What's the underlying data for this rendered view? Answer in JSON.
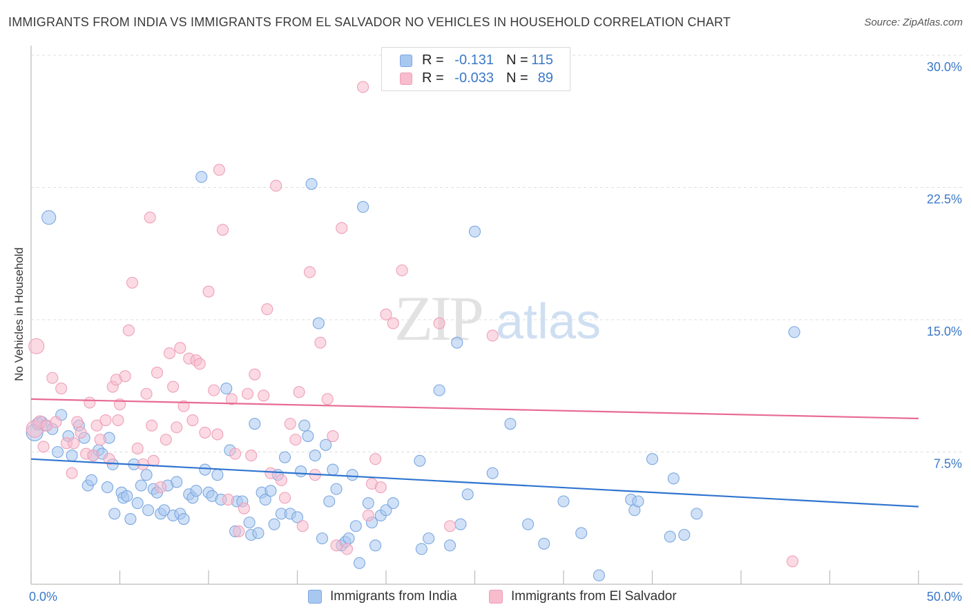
{
  "header": {
    "title": "IMMIGRANTS FROM INDIA VS IMMIGRANTS FROM EL SALVADOR NO VEHICLES IN HOUSEHOLD CORRELATION CHART",
    "source": "Source: ZipAtlas.com"
  },
  "watermark": {
    "zip": "ZIP",
    "atlas": "atlas"
  },
  "legend": {
    "r_label": "R =",
    "n_label": "N =",
    "india": {
      "r": "-0.131",
      "n": "115"
    },
    "elsalvador": {
      "r": "-0.033",
      "n": "89"
    }
  },
  "bottom_legend": {
    "india": "Immigrants from India",
    "elsalvador": "Immigrants from El Salvador"
  },
  "colors": {
    "india_fill": "#a9c8f0",
    "india_stroke": "#7aa7e0",
    "india_line": "#2f74d0",
    "elsalvador_fill": "#f7bccd",
    "elsalvador_stroke": "#eea0b8",
    "elsalvador_line": "#e86a92",
    "tick_label": "#3a78c8",
    "grid": "#dddddd"
  },
  "chart_data": {
    "type": "scatter",
    "title": "IMMIGRANTS FROM INDIA VS IMMIGRANTS FROM EL SALVADOR NO VEHICLES IN HOUSEHOLD CORRELATION CHART",
    "xlabel": "",
    "ylabel": "No Vehicles in Household",
    "xlim": [
      0,
      50
    ],
    "ylim": [
      0,
      30
    ],
    "x_tick_labels": [
      {
        "value": 0,
        "label": "0.0%"
      },
      {
        "value": 50,
        "label": "50.0%"
      }
    ],
    "y_ticks": [
      {
        "value": 7.5,
        "label": "7.5%"
      },
      {
        "value": 15,
        "label": "15.0%"
      },
      {
        "value": 22.5,
        "label": "22.5%"
      },
      {
        "value": 30,
        "label": "30.0%"
      }
    ],
    "x_minor_ticks": [
      0,
      5,
      10,
      15,
      20,
      25,
      30,
      35,
      40,
      45,
      50
    ],
    "grid": true,
    "legend_position": "top-center",
    "series": [
      {
        "name": "Immigrants from India",
        "trend": {
          "x0": 0,
          "y0": 7.1,
          "x1": 50,
          "y1": 4.4
        },
        "points": [
          [
            0.2,
            8.6,
            12
          ],
          [
            0.4,
            9.1,
            9
          ],
          [
            0.6,
            9.2,
            8
          ],
          [
            0.8,
            9.0,
            8
          ],
          [
            1.0,
            20.8,
            10
          ],
          [
            1.2,
            8.8,
            8
          ],
          [
            1.5,
            7.5,
            8
          ],
          [
            1.7,
            9.6,
            8
          ],
          [
            2.1,
            8.4,
            8
          ],
          [
            2.3,
            7.3,
            8
          ],
          [
            2.7,
            9.0,
            8
          ],
          [
            3.0,
            8.3,
            8
          ],
          [
            3.2,
            5.6,
            8
          ],
          [
            3.4,
            5.9,
            8
          ],
          [
            3.5,
            7.3,
            8
          ],
          [
            3.8,
            7.6,
            8
          ],
          [
            4.0,
            7.4,
            8
          ],
          [
            4.3,
            5.5,
            8
          ],
          [
            4.4,
            8.3,
            8
          ],
          [
            4.6,
            6.8,
            8
          ],
          [
            4.7,
            4.0,
            8
          ],
          [
            5.1,
            5.2,
            8
          ],
          [
            5.2,
            4.9,
            8
          ],
          [
            5.4,
            5.0,
            8
          ],
          [
            5.6,
            3.7,
            8
          ],
          [
            5.8,
            6.8,
            8
          ],
          [
            6.0,
            4.6,
            8
          ],
          [
            6.2,
            5.6,
            8
          ],
          [
            6.5,
            6.2,
            8
          ],
          [
            6.6,
            4.2,
            8
          ],
          [
            6.9,
            5.4,
            8
          ],
          [
            7.1,
            5.2,
            8
          ],
          [
            7.3,
            4.0,
            8
          ],
          [
            7.5,
            4.2,
            8
          ],
          [
            7.7,
            5.6,
            8
          ],
          [
            8.0,
            3.9,
            8
          ],
          [
            8.2,
            5.8,
            8
          ],
          [
            8.4,
            4.0,
            8
          ],
          [
            8.6,
            3.7,
            8
          ],
          [
            8.9,
            5.1,
            8
          ],
          [
            9.1,
            4.9,
            8
          ],
          [
            9.3,
            5.3,
            8
          ],
          [
            9.6,
            23.1,
            8
          ],
          [
            9.8,
            6.5,
            8
          ],
          [
            10.0,
            5.2,
            8
          ],
          [
            10.2,
            5.0,
            8
          ],
          [
            10.5,
            6.2,
            8
          ],
          [
            10.7,
            4.8,
            8
          ],
          [
            11.0,
            11.1,
            8
          ],
          [
            11.2,
            7.6,
            8
          ],
          [
            11.5,
            3.0,
            8
          ],
          [
            11.6,
            4.7,
            8
          ],
          [
            11.9,
            4.7,
            8
          ],
          [
            12.3,
            3.5,
            8
          ],
          [
            12.4,
            2.8,
            8
          ],
          [
            12.6,
            9.1,
            8
          ],
          [
            12.8,
            2.9,
            8
          ],
          [
            13.0,
            5.2,
            8
          ],
          [
            13.2,
            4.8,
            8
          ],
          [
            13.5,
            5.3,
            8
          ],
          [
            13.7,
            3.4,
            8
          ],
          [
            13.9,
            6.2,
            8
          ],
          [
            14.1,
            4.0,
            8
          ],
          [
            14.3,
            7.2,
            8
          ],
          [
            14.6,
            4.0,
            8
          ],
          [
            15.0,
            3.8,
            8
          ],
          [
            15.2,
            6.4,
            8
          ],
          [
            15.4,
            9.0,
            8
          ],
          [
            15.6,
            8.4,
            8
          ],
          [
            15.8,
            22.7,
            8
          ],
          [
            16.0,
            7.3,
            8
          ],
          [
            16.2,
            14.8,
            8
          ],
          [
            16.4,
            2.6,
            8
          ],
          [
            16.6,
            7.9,
            8
          ],
          [
            16.8,
            4.7,
            8
          ],
          [
            17.0,
            6.5,
            8
          ],
          [
            17.2,
            5.4,
            8
          ],
          [
            17.5,
            2.2,
            8
          ],
          [
            17.7,
            2.4,
            8
          ],
          [
            17.9,
            2.6,
            8
          ],
          [
            18.1,
            6.2,
            8
          ],
          [
            18.3,
            3.3,
            8
          ],
          [
            18.5,
            1.2,
            8
          ],
          [
            18.7,
            21.4,
            8
          ],
          [
            19.0,
            4.6,
            8
          ],
          [
            19.2,
            3.5,
            8
          ],
          [
            19.4,
            2.2,
            8
          ],
          [
            19.7,
            3.9,
            8
          ],
          [
            20.0,
            4.2,
            8
          ],
          [
            20.4,
            4.6,
            8
          ],
          [
            21.9,
            7.0,
            8
          ],
          [
            22.0,
            2.0,
            8
          ],
          [
            22.4,
            2.6,
            8
          ],
          [
            23.0,
            11.0,
            8
          ],
          [
            23.6,
            2.2,
            8
          ],
          [
            24.0,
            13.7,
            8
          ],
          [
            24.2,
            3.4,
            8
          ],
          [
            24.6,
            5.1,
            8
          ],
          [
            25.0,
            20.0,
            8
          ],
          [
            26.0,
            6.3,
            8
          ],
          [
            27.0,
            9.1,
            8
          ],
          [
            28.0,
            3.4,
            8
          ],
          [
            28.9,
            2.3,
            8
          ],
          [
            30.0,
            4.7,
            8
          ],
          [
            31.0,
            2.9,
            8
          ],
          [
            32.0,
            0.5,
            8
          ],
          [
            33.8,
            4.8,
            8
          ],
          [
            34.0,
            4.2,
            8
          ],
          [
            34.2,
            4.7,
            8
          ],
          [
            35.0,
            7.1,
            8
          ],
          [
            36.0,
            2.7,
            8
          ],
          [
            36.2,
            6.0,
            8
          ],
          [
            36.8,
            2.8,
            8
          ],
          [
            37.5,
            4.0,
            8
          ],
          [
            43.0,
            14.3,
            8
          ]
        ]
      },
      {
        "name": "Immigrants from El Salvador",
        "trend": {
          "x0": 0,
          "y0": 10.5,
          "x1": 50,
          "y1": 9.4
        },
        "points": [
          [
            0.2,
            8.8,
            12
          ],
          [
            0.3,
            13.5,
            11
          ],
          [
            0.5,
            9.2,
            9
          ],
          [
            0.7,
            7.8,
            8
          ],
          [
            0.9,
            9.0,
            8
          ],
          [
            1.2,
            11.7,
            8
          ],
          [
            1.4,
            9.2,
            8
          ],
          [
            1.7,
            11.1,
            8
          ],
          [
            2.0,
            8.0,
            8
          ],
          [
            2.3,
            6.3,
            8
          ],
          [
            2.6,
            9.2,
            8
          ],
          [
            2.8,
            8.6,
            8
          ],
          [
            3.1,
            7.4,
            8
          ],
          [
            3.3,
            10.3,
            8
          ],
          [
            3.5,
            7.3,
            8
          ],
          [
            3.7,
            9.0,
            8
          ],
          [
            3.9,
            8.2,
            8
          ],
          [
            4.2,
            9.3,
            8
          ],
          [
            4.4,
            7.1,
            8
          ],
          [
            4.6,
            11.2,
            8
          ],
          [
            4.8,
            11.6,
            8
          ],
          [
            5.0,
            10.2,
            8
          ],
          [
            5.3,
            11.8,
            8
          ],
          [
            5.5,
            14.4,
            8
          ],
          [
            5.7,
            17.1,
            8
          ],
          [
            6.0,
            7.7,
            8
          ],
          [
            6.3,
            6.8,
            8
          ],
          [
            6.5,
            10.8,
            8
          ],
          [
            6.7,
            20.8,
            8
          ],
          [
            6.9,
            7.0,
            8
          ],
          [
            7.1,
            12.0,
            8
          ],
          [
            7.3,
            5.5,
            8
          ],
          [
            7.6,
            8.2,
            8
          ],
          [
            7.8,
            13.1,
            8
          ],
          [
            8.0,
            11.2,
            8
          ],
          [
            8.2,
            8.9,
            8
          ],
          [
            8.4,
            13.4,
            8
          ],
          [
            8.6,
            10.1,
            8
          ],
          [
            8.9,
            12.8,
            8
          ],
          [
            9.1,
            9.3,
            8
          ],
          [
            9.3,
            12.7,
            8
          ],
          [
            9.5,
            12.5,
            8
          ],
          [
            9.8,
            8.6,
            8
          ],
          [
            10.0,
            16.6,
            8
          ],
          [
            10.3,
            11.0,
            8
          ],
          [
            10.5,
            8.5,
            8
          ],
          [
            10.6,
            23.5,
            8
          ],
          [
            10.8,
            20.1,
            8
          ],
          [
            11.1,
            4.8,
            8
          ],
          [
            11.3,
            10.5,
            8
          ],
          [
            11.5,
            7.4,
            8
          ],
          [
            11.7,
            3.0,
            8
          ],
          [
            12.0,
            4.3,
            8
          ],
          [
            12.2,
            10.8,
            8
          ],
          [
            12.4,
            7.3,
            8
          ],
          [
            12.6,
            11.9,
            8
          ],
          [
            13.1,
            10.7,
            8
          ],
          [
            13.3,
            15.6,
            8
          ],
          [
            13.5,
            6.3,
            8
          ],
          [
            13.8,
            22.6,
            8
          ],
          [
            14.1,
            5.9,
            8
          ],
          [
            14.3,
            4.9,
            8
          ],
          [
            14.6,
            9.1,
            8
          ],
          [
            14.9,
            8.2,
            8
          ],
          [
            15.1,
            10.9,
            8
          ],
          [
            15.3,
            3.3,
            8
          ],
          [
            15.7,
            17.7,
            8
          ],
          [
            16.0,
            6.2,
            8
          ],
          [
            16.3,
            13.7,
            8
          ],
          [
            16.7,
            10.5,
            8
          ],
          [
            17.0,
            8.4,
            8
          ],
          [
            17.2,
            2.2,
            8
          ],
          [
            17.5,
            20.2,
            8
          ],
          [
            17.8,
            2.0,
            8
          ],
          [
            18.7,
            28.2,
            8
          ],
          [
            19.0,
            3.9,
            8
          ],
          [
            19.2,
            5.7,
            8
          ],
          [
            19.4,
            7.1,
            8
          ],
          [
            19.7,
            5.5,
            8
          ],
          [
            20.0,
            15.3,
            8
          ],
          [
            20.4,
            14.8,
            8
          ],
          [
            20.9,
            17.8,
            8
          ],
          [
            23.0,
            14.8,
            8
          ],
          [
            23.6,
            3.3,
            8
          ],
          [
            26.0,
            14.1,
            8
          ],
          [
            42.9,
            1.3,
            8
          ],
          [
            2.4,
            8.0,
            8
          ],
          [
            4.9,
            9.3,
            8
          ],
          [
            6.8,
            9.0,
            8
          ]
        ]
      }
    ]
  }
}
